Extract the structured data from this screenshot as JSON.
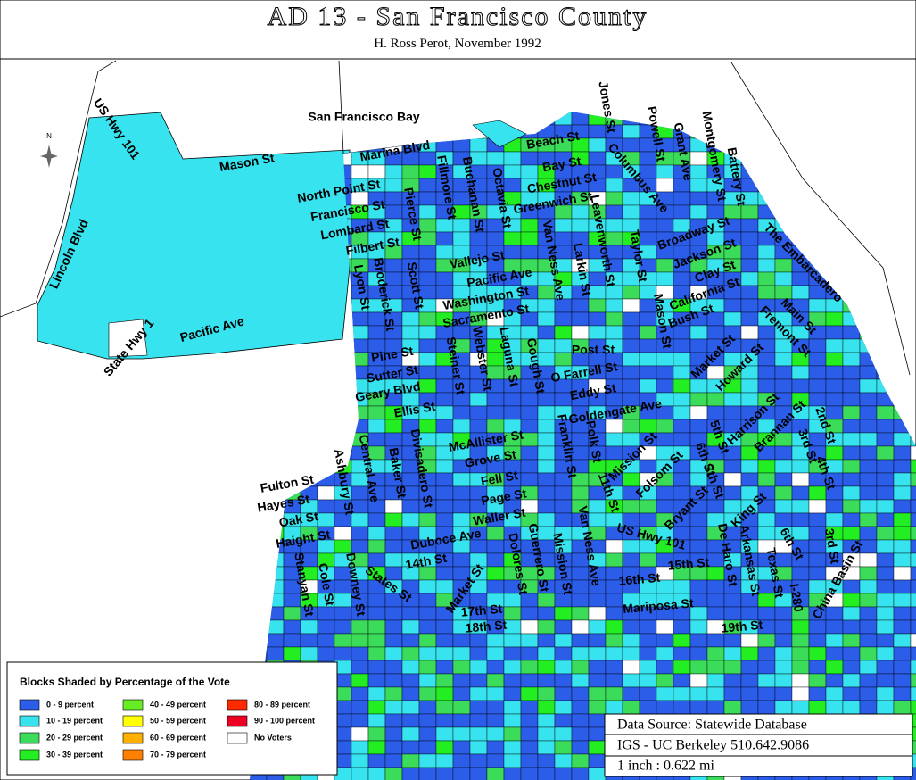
{
  "header": {
    "title": "AD 13 - San Francisco County",
    "subtitle": "H. Ross Perot, November 1992"
  },
  "map": {
    "north_label": "N",
    "labels": [
      "San Francisco Bay",
      "US Hwy 101",
      "Mason St",
      "Lincoln Blvd",
      "Pacific Ave",
      "State Hwy 1",
      "Marina Blvd",
      "North Point St",
      "Francisco St",
      "Lombard St",
      "Filbert St",
      "Beach St",
      "Bay St",
      "Chestnut St",
      "Greenwich St",
      "Jones St",
      "Powell St",
      "Grant Ave",
      "Montgomery St",
      "Battery St",
      "Columbus Ave",
      "Broadway St",
      "Jackson St",
      "Clay St",
      "California St",
      "Bush St",
      "The Embarcadero",
      "Main St",
      "Fremont St",
      "Market St",
      "Howard St",
      "Pierce St",
      "Fillmore St",
      "Buchanan St",
      "Octavia St",
      "Vallejo St",
      "Pacific Ave",
      "Washington St",
      "Sacramento St",
      "Van Ness Ave",
      "Larkin St",
      "Leavenworth St",
      "Taylor St",
      "Mason St",
      "Lyon St",
      "Broderick St",
      "Scott St",
      "Pine St",
      "Sutter St",
      "Geary Blvd",
      "Ellis St",
      "Steiner St",
      "Webster St",
      "Laguna St",
      "Gough St",
      "Post St",
      "O Farrell St",
      "Eddy St",
      "Goldengate Ave",
      "McAllister St",
      "Grove St",
      "Fell St",
      "Page St",
      "Waller St",
      "Franklin St",
      "Polk St",
      "Mission St",
      "11th St",
      "Folsom St",
      "6th St",
      "5th St",
      "Harrison St",
      "Bryant St",
      "7th St",
      "Brannan St",
      "King St",
      "3rd St",
      "4th St",
      "2nd St",
      "Fulton St",
      "Hayes St",
      "Oak St",
      "Haight St",
      "Ashbury St",
      "Central Ave",
      "Baker St",
      "Divisadero St",
      "Stanyan St",
      "Cole St",
      "Downey St",
      "Duboce Ave",
      "14th St",
      "States St",
      "Market St",
      "Dolores St",
      "Guerrero St",
      "Mission St",
      "Van Ness Ave",
      "US Hwy 101",
      "15th St",
      "16th St",
      "17th St",
      "18th St",
      "Mariposa St",
      "19th St",
      "De Haro St",
      "Arkansas St",
      "Texas St",
      "6th St",
      "I-280",
      "3rd St",
      "China Basin St"
    ]
  },
  "legend": {
    "title": "Blocks Shaded by Percentage of the Vote",
    "items": [
      {
        "label": "0 - 9 percent",
        "color": "#2b5de8"
      },
      {
        "label": "10 - 19 percent",
        "color": "#37e3ee"
      },
      {
        "label": "20 - 29 percent",
        "color": "#3bdc5a"
      },
      {
        "label": "30 - 39 percent",
        "color": "#22ee22"
      },
      {
        "label": "40 - 49 percent",
        "color": "#66ee22"
      },
      {
        "label": "50 - 59 percent",
        "color": "#ffff00"
      },
      {
        "label": "60 - 69 percent",
        "color": "#ffb000"
      },
      {
        "label": "70 - 79 percent",
        "color": "#ff7f00"
      },
      {
        "label": "80 - 89 percent",
        "color": "#ff2a00"
      },
      {
        "label": "90 - 100 percent",
        "color": "#ee0022"
      },
      {
        "label": "No Voters",
        "color": "#ffffff"
      }
    ]
  },
  "source": {
    "lines": [
      "Data Source: Statewide Database",
      "IGS - UC Berkeley 510.642.9086",
      "1 inch : 0.622 mi"
    ]
  }
}
